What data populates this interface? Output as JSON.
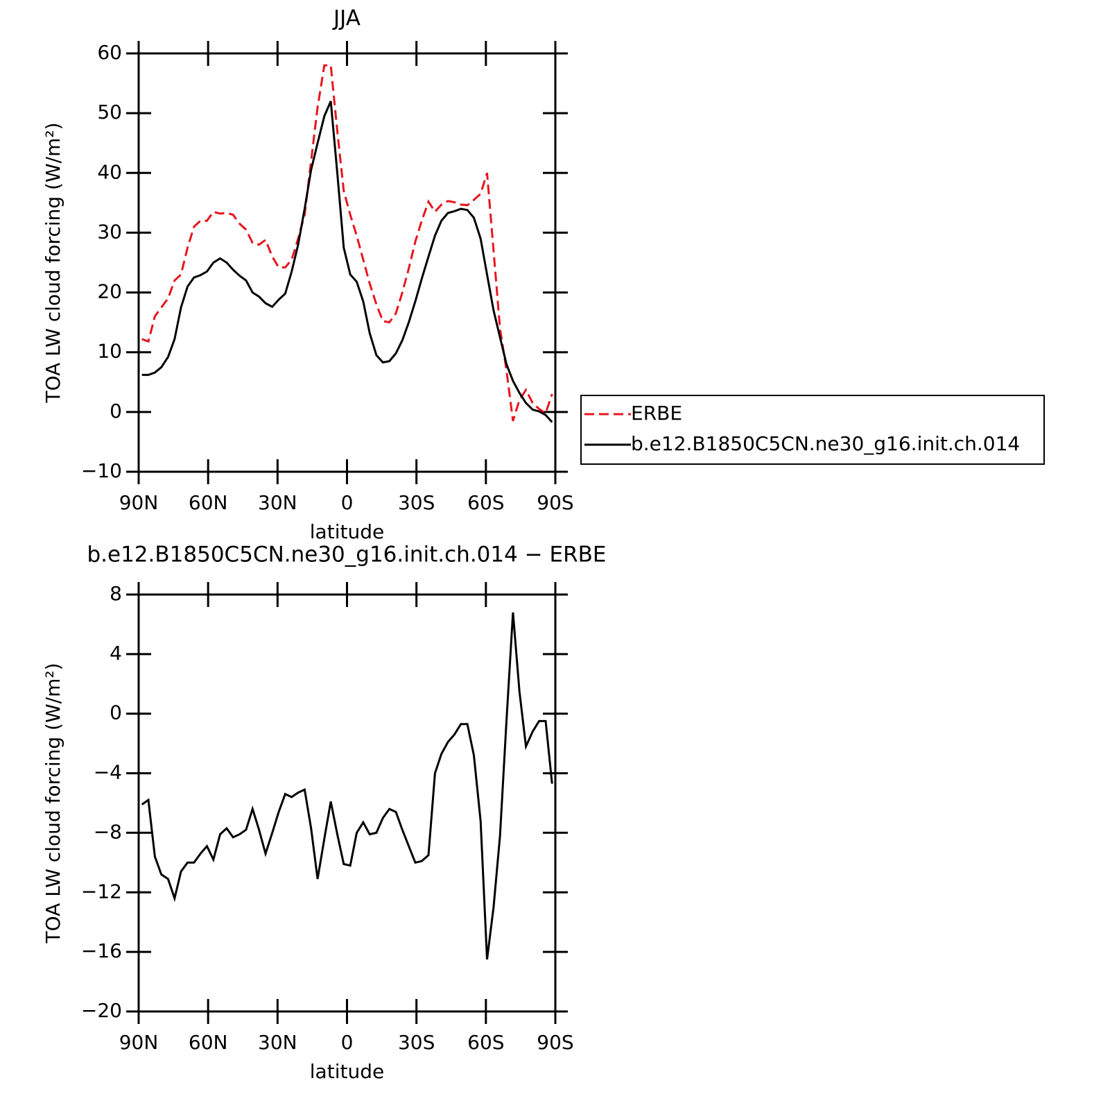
{
  "chart_data": [
    {
      "type": "line",
      "title": "JJA",
      "xlabel": "latitude",
      "ylabel": "TOA LW cloud forcing (W/m²)",
      "x": [
        88.6,
        85.8,
        83.0,
        80.2,
        77.3,
        74.5,
        71.7,
        68.9,
        66.1,
        63.3,
        60.5,
        57.7,
        54.8,
        52.0,
        49.2,
        46.4,
        43.6,
        40.8,
        38.0,
        35.2,
        32.3,
        29.5,
        26.7,
        23.9,
        21.1,
        18.3,
        15.5,
        12.7,
        9.8,
        7.0,
        4.2,
        1.4,
        -1.4,
        -4.2,
        -7.0,
        -9.8,
        -12.7,
        -15.5,
        -18.3,
        -21.1,
        -23.9,
        -26.7,
        -29.5,
        -32.3,
        -35.2,
        -38.0,
        -40.8,
        -43.6,
        -46.4,
        -49.2,
        -52.0,
        -54.8,
        -57.7,
        -60.5,
        -63.3,
        -66.1,
        -68.9,
        -71.7,
        -74.5,
        -77.3,
        -80.2,
        -83.0,
        -85.8,
        -88.6
      ],
      "series": [
        {
          "name": "ERBE",
          "color": "#e8141e",
          "dash": "dashed",
          "values": [
            12.2,
            11.8,
            16,
            17.5,
            19,
            22,
            23,
            27.5,
            31,
            32,
            32,
            33.5,
            33.2,
            33.3,
            33,
            31.5,
            30.5,
            28.3,
            28,
            28.8,
            26,
            24.2,
            24.2,
            25.5,
            29,
            33,
            42,
            51,
            58,
            58,
            47,
            37,
            33,
            29.5,
            25.5,
            21.5,
            18,
            15.2,
            15,
            16.5,
            20,
            24,
            28.5,
            32,
            35.2,
            33.5,
            34.7,
            35.3,
            35.1,
            34.7,
            34.6,
            35.5,
            36.5,
            40,
            27,
            14,
            7,
            -1.5,
            2,
            3.7,
            1.5,
            0.5,
            -0.2,
            3
          ]
        },
        {
          "name": "b.e12.B1850C5CN.ne30_g16.init.ch.014",
          "color": "#000000",
          "dash": "solid",
          "values": [
            6.2,
            6.2,
            6.6,
            7.5,
            9.2,
            12.2,
            17.5,
            21,
            22.5,
            22.9,
            23.5,
            25,
            25.7,
            25,
            23.8,
            22.8,
            22,
            20,
            19.3,
            18.2,
            17.6,
            18.8,
            19.8,
            23.5,
            28,
            34,
            40.5,
            45,
            49.5,
            52,
            40,
            27.5,
            23,
            21.8,
            18.5,
            13.2,
            9.5,
            8.3,
            8.5,
            9.8,
            12,
            15,
            18.5,
            22.3,
            26,
            29.5,
            32,
            33.3,
            33.6,
            34,
            33.8,
            32.5,
            29,
            23,
            17,
            12.5,
            8,
            5.2,
            3.2,
            1.5,
            0.4,
            0.1,
            -0.5,
            -1.7
          ]
        }
      ],
      "xlim": [
        90,
        -90
      ],
      "xticks": [
        {
          "value": 90,
          "label": "90N"
        },
        {
          "value": 60,
          "label": "60N"
        },
        {
          "value": 30,
          "label": "30N"
        },
        0,
        {
          "value": -30,
          "label": "30S"
        },
        {
          "value": -60,
          "label": "60S"
        },
        {
          "value": -90,
          "label": "90S"
        }
      ],
      "ylim": [
        -10,
        60
      ],
      "yticks": [
        {
          "value": -10,
          "label": "−10"
        },
        0,
        10,
        20,
        30,
        40,
        50,
        60
      ],
      "legend": true
    },
    {
      "type": "line",
      "title": "b.e12.B1850C5CN.ne30_g16.init.ch.014 − ERBE",
      "xlabel": "latitude",
      "ylabel": "TOA LW cloud forcing (W/m²)",
      "x": [
        88.6,
        85.8,
        83.0,
        80.2,
        77.3,
        74.5,
        71.7,
        68.9,
        66.1,
        63.3,
        60.5,
        57.7,
        54.8,
        52.0,
        49.2,
        46.4,
        43.6,
        40.8,
        38.0,
        35.2,
        32.3,
        29.5,
        26.7,
        23.9,
        21.1,
        18.3,
        15.5,
        12.7,
        9.8,
        7.0,
        4.2,
        1.4,
        -1.4,
        -4.2,
        -7.0,
        -9.8,
        -12.7,
        -15.5,
        -18.3,
        -21.1,
        -23.9,
        -26.7,
        -29.5,
        -32.3,
        -35.2,
        -38.0,
        -40.8,
        -43.6,
        -46.4,
        -49.2,
        -52.0,
        -54.8,
        -57.7,
        -60.5,
        -63.3,
        -66.1,
        -68.9,
        -71.7,
        -74.5,
        -77.3,
        -80.2,
        -83.0,
        -85.8,
        -88.6
      ],
      "series": [
        {
          "color": "#000000",
          "dash": "solid",
          "values": [
            -6.1,
            -5.8,
            -9.6,
            -10.8,
            -11.1,
            -12.4,
            -10.6,
            -10,
            -10,
            -9.4,
            -8.9,
            -9.8,
            -8.1,
            -7.7,
            -8.3,
            -8.1,
            -7.8,
            -6.4,
            -7.8,
            -9.4,
            -8,
            -6.6,
            -5.4,
            -5.6,
            -5.3,
            -5.1,
            -7.7,
            -11.1,
            -8.4,
            -5.9,
            -8.1,
            -10.1,
            -10.2,
            -8,
            -7.3,
            -8.1,
            -8,
            -7,
            -6.4,
            -6.6,
            -7.8,
            -8.9,
            -10,
            -9.9,
            -9.5,
            -4,
            -2.7,
            -1.9,
            -1.4,
            -0.7,
            -0.7,
            -2.8,
            -7.2,
            -16.5,
            -13,
            -8.2,
            -0.5,
            6.8,
            1.5,
            -2.2,
            -1.2,
            -0.5,
            -0.5,
            -4.7
          ]
        }
      ],
      "xlim": [
        90,
        -90
      ],
      "xticks": [
        {
          "value": 90,
          "label": "90N"
        },
        {
          "value": 60,
          "label": "60N"
        },
        {
          "value": 30,
          "label": "30N"
        },
        0,
        {
          "value": -30,
          "label": "30S"
        },
        {
          "value": -60,
          "label": "60S"
        },
        {
          "value": -90,
          "label": "90S"
        }
      ],
      "ylim": [
        -20,
        8
      ],
      "yticks": [
        {
          "value": -20,
          "label": "−20"
        },
        {
          "value": -16,
          "label": "−16"
        },
        {
          "value": -12,
          "label": "−12"
        },
        {
          "value": -8,
          "label": "−8"
        },
        {
          "value": -4,
          "label": "−4"
        },
        0,
        4,
        8
      ]
    }
  ]
}
